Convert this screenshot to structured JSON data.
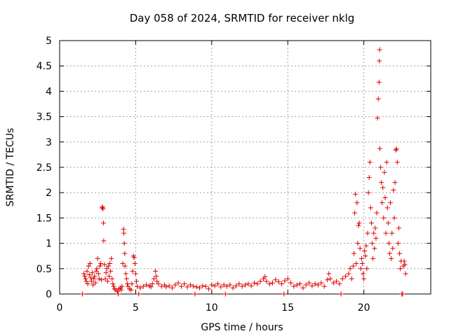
{
  "chart_data": {
    "type": "scatter",
    "title": "Day 058 of 2024, SRMTID for receiver nklg",
    "xlabel": "GPS time / hours",
    "ylabel": "SRMTID / TECUs",
    "xlim": [
      0,
      24.4
    ],
    "ylim": [
      0,
      5
    ],
    "grid": true,
    "marker": "+",
    "series_color": "#dd0000",
    "x_ticks": [
      {
        "value": 0,
        "label": "0"
      },
      {
        "value": 5,
        "label": "5"
      },
      {
        "value": 10,
        "label": "10"
      },
      {
        "value": 15,
        "label": "15"
      },
      {
        "value": 20,
        "label": "20"
      }
    ],
    "y_ticks": [
      {
        "value": 0,
        "label": "0"
      },
      {
        "value": 0.5,
        "label": "0.5"
      },
      {
        "value": 1,
        "label": "1"
      },
      {
        "value": 1.5,
        "label": "1.5"
      },
      {
        "value": 2,
        "label": "2"
      },
      {
        "value": 2.5,
        "label": "2.5"
      },
      {
        "value": 3,
        "label": "3"
      },
      {
        "value": 3.5,
        "label": "3.5"
      },
      {
        "value": 4,
        "label": "4"
      },
      {
        "value": 4.5,
        "label": "4.5"
      },
      {
        "value": 5,
        "label": "5"
      }
    ],
    "series": [
      {
        "name": "SRMTID",
        "points": [
          [
            1.5,
            0.0
          ],
          [
            1.6,
            0.4
          ],
          [
            1.65,
            0.35
          ],
          [
            1.7,
            0.3
          ],
          [
            1.75,
            0.25
          ],
          [
            1.8,
            0.45
          ],
          [
            1.85,
            0.2
          ],
          [
            1.9,
            0.55
          ],
          [
            1.95,
            0.38
          ],
          [
            2.0,
            0.6
          ],
          [
            2.05,
            0.32
          ],
          [
            2.1,
            0.25
          ],
          [
            2.15,
            0.42
          ],
          [
            2.2,
            0.18
          ],
          [
            2.25,
            0.3
          ],
          [
            2.3,
            0.35
          ],
          [
            2.35,
            0.22
          ],
          [
            2.4,
            0.45
          ],
          [
            2.45,
            0.5
          ],
          [
            2.5,
            0.7
          ],
          [
            2.55,
            0.4
          ],
          [
            2.6,
            0.3
          ],
          [
            2.65,
            0.55
          ],
          [
            2.7,
            0.6
          ],
          [
            2.75,
            0.28
          ],
          [
            2.8,
            1.7
          ],
          [
            2.82,
            1.72
          ],
          [
            2.85,
            1.68
          ],
          [
            2.88,
            1.4
          ],
          [
            2.9,
            1.05
          ],
          [
            2.95,
            0.58
          ],
          [
            3.0,
            0.3
          ],
          [
            3.05,
            0.42
          ],
          [
            3.1,
            0.5
          ],
          [
            3.15,
            0.25
          ],
          [
            3.2,
            0.55
          ],
          [
            3.25,
            0.35
          ],
          [
            3.3,
            0.6
          ],
          [
            3.35,
            0.45
          ],
          [
            3.4,
            0.7
          ],
          [
            3.45,
            0.3
          ],
          [
            3.5,
            0.2
          ],
          [
            3.55,
            0.15
          ],
          [
            3.6,
            0.1
          ],
          [
            3.7,
            0.08
          ],
          [
            3.8,
            0.05
          ],
          [
            3.85,
            0.0
          ],
          [
            3.9,
            0.1
          ],
          [
            4.0,
            0.12
          ],
          [
            4.05,
            0.08
          ],
          [
            4.1,
            0.15
          ],
          [
            4.15,
            0.6
          ],
          [
            4.2,
            1.28
          ],
          [
            4.22,
            1.2
          ],
          [
            4.25,
            1.0
          ],
          [
            4.28,
            0.8
          ],
          [
            4.3,
            0.55
          ],
          [
            4.35,
            0.4
          ],
          [
            4.4,
            0.3
          ],
          [
            4.45,
            0.2
          ],
          [
            4.5,
            0.15
          ],
          [
            4.6,
            0.1
          ],
          [
            4.7,
            0.08
          ],
          [
            4.75,
            0.2
          ],
          [
            4.8,
            0.45
          ],
          [
            4.85,
            0.75
          ],
          [
            4.9,
            0.72
          ],
          [
            4.95,
            0.6
          ],
          [
            5.0,
            0.4
          ],
          [
            5.05,
            0.25
          ],
          [
            5.1,
            0.15
          ],
          [
            5.2,
            0.0
          ],
          [
            5.3,
            0.12
          ],
          [
            5.5,
            0.15
          ],
          [
            5.7,
            0.18
          ],
          [
            5.9,
            0.16
          ],
          [
            6.0,
            0.14
          ],
          [
            6.1,
            0.2
          ],
          [
            6.2,
            0.3
          ],
          [
            6.3,
            0.45
          ],
          [
            6.35,
            0.35
          ],
          [
            6.4,
            0.25
          ],
          [
            6.5,
            0.2
          ],
          [
            6.7,
            0.15
          ],
          [
            6.9,
            0.18
          ],
          [
            7.0,
            0.14
          ],
          [
            7.2,
            0.16
          ],
          [
            7.4,
            0.12
          ],
          [
            7.6,
            0.18
          ],
          [
            7.8,
            0.22
          ],
          [
            8.0,
            0.15
          ],
          [
            8.2,
            0.2
          ],
          [
            8.4,
            0.14
          ],
          [
            8.6,
            0.18
          ],
          [
            8.8,
            0.15
          ],
          [
            8.9,
            0.0
          ],
          [
            9.0,
            0.14
          ],
          [
            9.2,
            0.12
          ],
          [
            9.4,
            0.16
          ],
          [
            9.6,
            0.15
          ],
          [
            9.8,
            0.1
          ],
          [
            10.0,
            0.18
          ],
          [
            10.2,
            0.16
          ],
          [
            10.4,
            0.2
          ],
          [
            10.6,
            0.14
          ],
          [
            10.8,
            0.18
          ],
          [
            10.9,
            0.0
          ],
          [
            11.0,
            0.15
          ],
          [
            11.2,
            0.18
          ],
          [
            11.4,
            0.12
          ],
          [
            11.6,
            0.16
          ],
          [
            11.8,
            0.2
          ],
          [
            12.0,
            0.15
          ],
          [
            12.2,
            0.18
          ],
          [
            12.4,
            0.2
          ],
          [
            12.6,
            0.16
          ],
          [
            12.8,
            0.22
          ],
          [
            13.0,
            0.2
          ],
          [
            13.2,
            0.25
          ],
          [
            13.4,
            0.3
          ],
          [
            13.5,
            0.34
          ],
          [
            13.6,
            0.25
          ],
          [
            13.8,
            0.2
          ],
          [
            14.0,
            0.22
          ],
          [
            14.2,
            0.28
          ],
          [
            14.4,
            0.24
          ],
          [
            14.6,
            0.2
          ],
          [
            14.75,
            0.0
          ],
          [
            14.8,
            0.26
          ],
          [
            15.0,
            0.3
          ],
          [
            15.2,
            0.22
          ],
          [
            15.4,
            0.15
          ],
          [
            15.6,
            0.18
          ],
          [
            15.8,
            0.2
          ],
          [
            16.0,
            0.12
          ],
          [
            16.2,
            0.18
          ],
          [
            16.4,
            0.22
          ],
          [
            16.6,
            0.16
          ],
          [
            16.8,
            0.2
          ],
          [
            17.0,
            0.18
          ],
          [
            17.2,
            0.22
          ],
          [
            17.4,
            0.15
          ],
          [
            17.6,
            0.28
          ],
          [
            17.7,
            0.4
          ],
          [
            17.8,
            0.3
          ],
          [
            18.0,
            0.22
          ],
          [
            18.2,
            0.25
          ],
          [
            18.4,
            0.2
          ],
          [
            18.5,
            0.0
          ],
          [
            18.6,
            0.3
          ],
          [
            18.8,
            0.35
          ],
          [
            19.0,
            0.4
          ],
          [
            19.1,
            0.5
          ],
          [
            19.2,
            0.3
          ],
          [
            19.3,
            0.55
          ],
          [
            19.35,
            0.8
          ],
          [
            19.4,
            1.6
          ],
          [
            19.45,
            1.97
          ],
          [
            19.5,
            0.6
          ],
          [
            19.55,
            1.8
          ],
          [
            19.6,
            1.0
          ],
          [
            19.65,
            1.35
          ],
          [
            19.7,
            1.4
          ],
          [
            19.75,
            0.9
          ],
          [
            19.8,
            0.5
          ],
          [
            19.85,
            0.7
          ],
          [
            19.9,
            0.6
          ],
          [
            19.95,
            0.4
          ],
          [
            20.0,
            0.3
          ],
          [
            20.05,
            0.85
          ],
          [
            20.1,
            0.75
          ],
          [
            20.15,
            0.95
          ],
          [
            20.2,
            0.5
          ],
          [
            20.25,
            1.2
          ],
          [
            20.3,
            2.0
          ],
          [
            20.35,
            2.3
          ],
          [
            20.4,
            2.6
          ],
          [
            20.45,
            1.7
          ],
          [
            20.5,
            1.4
          ],
          [
            20.55,
            1.0
          ],
          [
            20.6,
            0.7
          ],
          [
            20.65,
            1.2
          ],
          [
            20.7,
            0.9
          ],
          [
            20.75,
            1.3
          ],
          [
            20.8,
            1.1
          ],
          [
            20.85,
            1.6
          ],
          [
            20.9,
            3.47
          ],
          [
            20.95,
            3.85
          ],
          [
            21.0,
            4.18
          ],
          [
            21.02,
            4.6
          ],
          [
            21.04,
            4.82
          ],
          [
            21.05,
            2.87
          ],
          [
            21.1,
            2.5
          ],
          [
            21.15,
            2.2
          ],
          [
            21.2,
            1.8
          ],
          [
            21.25,
            2.1
          ],
          [
            21.3,
            1.5
          ],
          [
            21.35,
            2.4
          ],
          [
            21.4,
            1.9
          ],
          [
            21.45,
            1.2
          ],
          [
            21.5,
            2.6
          ],
          [
            21.55,
            1.7
          ],
          [
            21.6,
            1.4
          ],
          [
            21.65,
            1.0
          ],
          [
            21.7,
            0.8
          ],
          [
            21.75,
            1.8
          ],
          [
            21.8,
            0.7
          ],
          [
            21.85,
            1.2
          ],
          [
            21.9,
            0.9
          ],
          [
            21.95,
            2.05
          ],
          [
            22.0,
            1.5
          ],
          [
            22.05,
            2.2
          ],
          [
            22.1,
            2.84
          ],
          [
            22.15,
            2.86
          ],
          [
            22.2,
            2.6
          ],
          [
            22.25,
            1.0
          ],
          [
            22.3,
            1.3
          ],
          [
            22.35,
            0.8
          ],
          [
            22.4,
            0.5
          ],
          [
            22.45,
            0.65
          ],
          [
            22.5,
            0.0
          ],
          [
            22.55,
            0.0
          ],
          [
            22.6,
            0.55
          ],
          [
            22.65,
            0.65
          ],
          [
            22.7,
            0.58
          ],
          [
            22.75,
            0.4
          ]
        ]
      }
    ]
  }
}
